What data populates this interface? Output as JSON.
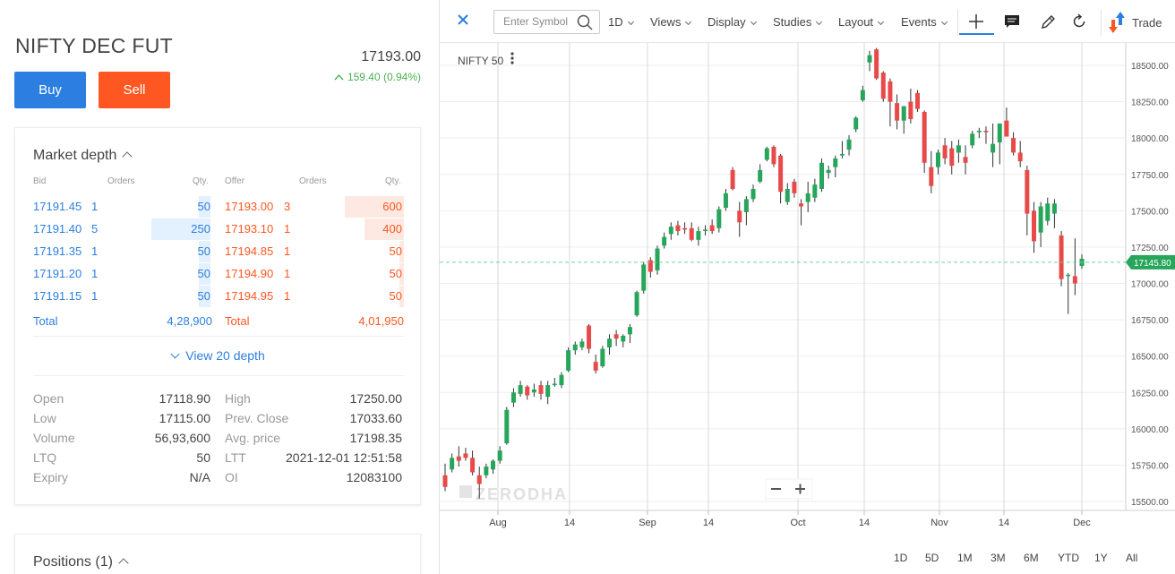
{
  "instrument": {
    "name": "NIFTY DEC FUT",
    "last_price": "17193.00",
    "change": "159.40 (0.94%)",
    "change_color": "#4caf50"
  },
  "actions": {
    "buy_label": "Buy",
    "sell_label": "Sell",
    "buy_color": "#2c7fe0",
    "sell_color": "#fe5722"
  },
  "depth": {
    "title": "Market depth",
    "headers": {
      "bid": "Bid",
      "bid_orders": "Orders",
      "bid_qty": "Qty.",
      "offer": "Offer",
      "offer_orders": "Orders",
      "offer_qty": "Qty."
    },
    "bids": [
      {
        "price": "17191.45",
        "orders": "1",
        "qty": "50",
        "fill": 0.2
      },
      {
        "price": "17191.40",
        "orders": "5",
        "qty": "250",
        "fill": 1.0
      },
      {
        "price": "17191.35",
        "orders": "1",
        "qty": "50",
        "fill": 0.2
      },
      {
        "price": "17191.20",
        "orders": "1",
        "qty": "50",
        "fill": 0.2
      },
      {
        "price": "17191.15",
        "orders": "1",
        "qty": "50",
        "fill": 0.2
      }
    ],
    "offers": [
      {
        "price": "17193.00",
        "orders": "3",
        "qty": "600",
        "fill": 1.0
      },
      {
        "price": "17193.10",
        "orders": "1",
        "qty": "400",
        "fill": 0.67
      },
      {
        "price": "17194.85",
        "orders": "1",
        "qty": "50",
        "fill": 0.08
      },
      {
        "price": "17194.90",
        "orders": "1",
        "qty": "50",
        "fill": 0.08
      },
      {
        "price": "17194.95",
        "orders": "1",
        "qty": "50",
        "fill": 0.08
      }
    ],
    "total_label": "Total",
    "bid_total": "4,28,900",
    "offer_total": "4,01,950",
    "view_more": "View 20 depth"
  },
  "stats": {
    "open_k": "Open",
    "open_v": "17118.90",
    "high_k": "High",
    "high_v": "17250.00",
    "low_k": "Low",
    "low_v": "17115.00",
    "prev_close_k": "Prev. Close",
    "prev_close_v": "17033.60",
    "volume_k": "Volume",
    "volume_v": "56,93,600",
    "avg_price_k": "Avg. price",
    "avg_price_v": "17198.35",
    "ltq_k": "LTQ",
    "ltq_v": "50",
    "ltt_k": "LTT",
    "ltt_v": "2021-12-01 12:51:58",
    "expiry_k": "Expiry",
    "expiry_v": "N/A",
    "oi_k": "OI",
    "oi_v": "12083100"
  },
  "positions": {
    "title": "Positions (1)"
  },
  "toolbar": {
    "search_placeholder": "Enter Symbol",
    "interval": "1D",
    "views": "Views",
    "display": "Display",
    "studies": "Studies",
    "layout": "Layout",
    "events": "Events",
    "trade": "Trade"
  },
  "chart_data": {
    "type": "candlestick",
    "symbol_label": "NIFTY 50",
    "watermark": "ZERODHA",
    "last_price_tag": "17145.80",
    "ylim": [
      15450,
      18600
    ],
    "y_ticks": [
      "18500.00",
      "18250.00",
      "18000.00",
      "17750.00",
      "17500.00",
      "17250.00",
      "17000.00",
      "16750.00",
      "16500.00",
      "16250.00",
      "16000.00",
      "15750.00",
      "15500.00"
    ],
    "x_ticks": [
      "Aug",
      "14",
      "Sep",
      "14",
      "Oct",
      "14",
      "Nov",
      "14",
      "Dec"
    ],
    "up_color": "#26a65b",
    "down_color": "#e84a4a",
    "series": [
      {
        "o": 15680,
        "h": 15760,
        "l": 15570,
        "c": 15600
      },
      {
        "o": 15720,
        "h": 15830,
        "l": 15700,
        "c": 15800
      },
      {
        "o": 15810,
        "h": 15880,
        "l": 15740,
        "c": 15780
      },
      {
        "o": 15830,
        "h": 15870,
        "l": 15780,
        "c": 15800
      },
      {
        "o": 15800,
        "h": 15850,
        "l": 15680,
        "c": 15700
      },
      {
        "o": 15680,
        "h": 15740,
        "l": 15520,
        "c": 15620
      },
      {
        "o": 15680,
        "h": 15760,
        "l": 15660,
        "c": 15740
      },
      {
        "o": 15720,
        "h": 15790,
        "l": 15690,
        "c": 15780
      },
      {
        "o": 15780,
        "h": 15880,
        "l": 15760,
        "c": 15850
      },
      {
        "o": 15900,
        "h": 16150,
        "l": 15890,
        "c": 16130
      },
      {
        "o": 16180,
        "h": 16280,
        "l": 16150,
        "c": 16250
      },
      {
        "o": 16240,
        "h": 16330,
        "l": 16220,
        "c": 16300
      },
      {
        "o": 16290,
        "h": 16300,
        "l": 16200,
        "c": 16230
      },
      {
        "o": 16250,
        "h": 16310,
        "l": 16220,
        "c": 16270
      },
      {
        "o": 16300,
        "h": 16330,
        "l": 16200,
        "c": 16240
      },
      {
        "o": 16220,
        "h": 16330,
        "l": 16170,
        "c": 16300
      },
      {
        "o": 16300,
        "h": 16350,
        "l": 16290,
        "c": 16310
      },
      {
        "o": 16300,
        "h": 16390,
        "l": 16280,
        "c": 16370
      },
      {
        "o": 16400,
        "h": 16560,
        "l": 16390,
        "c": 16540
      },
      {
        "o": 16540,
        "h": 16600,
        "l": 16510,
        "c": 16580
      },
      {
        "o": 16560,
        "h": 16620,
        "l": 16540,
        "c": 16600
      },
      {
        "o": 16710,
        "h": 16720,
        "l": 16520,
        "c": 16550
      },
      {
        "o": 16460,
        "h": 16510,
        "l": 16380,
        "c": 16400
      },
      {
        "o": 16430,
        "h": 16570,
        "l": 16420,
        "c": 16550
      },
      {
        "o": 16560,
        "h": 16650,
        "l": 16510,
        "c": 16620
      },
      {
        "o": 16650,
        "h": 16680,
        "l": 16570,
        "c": 16620
      },
      {
        "o": 16600,
        "h": 16650,
        "l": 16560,
        "c": 16640
      },
      {
        "o": 16650,
        "h": 16720,
        "l": 16590,
        "c": 16700
      },
      {
        "o": 16780,
        "h": 16950,
        "l": 16770,
        "c": 16940
      },
      {
        "o": 16950,
        "h": 17150,
        "l": 16930,
        "c": 17130
      },
      {
        "o": 17160,
        "h": 17180,
        "l": 17040,
        "c": 17080
      },
      {
        "o": 17090,
        "h": 17260,
        "l": 17060,
        "c": 17240
      },
      {
        "o": 17260,
        "h": 17350,
        "l": 17240,
        "c": 17320
      },
      {
        "o": 17340,
        "h": 17420,
        "l": 17300,
        "c": 17390
      },
      {
        "o": 17400,
        "h": 17430,
        "l": 17330,
        "c": 17360
      },
      {
        "o": 17380,
        "h": 17420,
        "l": 17340,
        "c": 17370
      },
      {
        "o": 17380,
        "h": 17420,
        "l": 17290,
        "c": 17300
      },
      {
        "o": 17300,
        "h": 17390,
        "l": 17260,
        "c": 17360
      },
      {
        "o": 17370,
        "h": 17400,
        "l": 17330,
        "c": 17370
      },
      {
        "o": 17400,
        "h": 17440,
        "l": 17340,
        "c": 17360
      },
      {
        "o": 17380,
        "h": 17530,
        "l": 17350,
        "c": 17510
      },
      {
        "o": 17520,
        "h": 17650,
        "l": 17500,
        "c": 17620
      },
      {
        "o": 17780,
        "h": 17800,
        "l": 17640,
        "c": 17650
      },
      {
        "o": 17500,
        "h": 17560,
        "l": 17320,
        "c": 17420
      },
      {
        "o": 17490,
        "h": 17600,
        "l": 17400,
        "c": 17580
      },
      {
        "o": 17580,
        "h": 17680,
        "l": 17560,
        "c": 17650
      },
      {
        "o": 17700,
        "h": 17820,
        "l": 17690,
        "c": 17780
      },
      {
        "o": 17850,
        "h": 17940,
        "l": 17840,
        "c": 17930
      },
      {
        "o": 17940,
        "h": 17950,
        "l": 17800,
        "c": 17820
      },
      {
        "o": 17880,
        "h": 17890,
        "l": 17550,
        "c": 17630
      },
      {
        "o": 17560,
        "h": 17690,
        "l": 17540,
        "c": 17650
      },
      {
        "o": 17700,
        "h": 17720,
        "l": 17590,
        "c": 17620
      },
      {
        "o": 17550,
        "h": 17580,
        "l": 17400,
        "c": 17530
      },
      {
        "o": 17560,
        "h": 17700,
        "l": 17490,
        "c": 17620
      },
      {
        "o": 17590,
        "h": 17720,
        "l": 17560,
        "c": 17680
      },
      {
        "o": 17650,
        "h": 17860,
        "l": 17630,
        "c": 17830
      },
      {
        "o": 17760,
        "h": 17810,
        "l": 17720,
        "c": 17780
      },
      {
        "o": 17800,
        "h": 17880,
        "l": 17730,
        "c": 17860
      },
      {
        "o": 17880,
        "h": 17980,
        "l": 17860,
        "c": 17890
      },
      {
        "o": 17920,
        "h": 18020,
        "l": 17880,
        "c": 17990
      },
      {
        "o": 18060,
        "h": 18150,
        "l": 18040,
        "c": 18140
      },
      {
        "o": 18260,
        "h": 18360,
        "l": 18250,
        "c": 18330
      },
      {
        "o": 18520,
        "h": 18600,
        "l": 18460,
        "c": 18570
      },
      {
        "o": 18610,
        "h": 18620,
        "l": 18400,
        "c": 18410
      },
      {
        "o": 18450,
        "h": 18460,
        "l": 18250,
        "c": 18270
      },
      {
        "o": 18390,
        "h": 18410,
        "l": 18080,
        "c": 18250
      },
      {
        "o": 18240,
        "h": 18300,
        "l": 18060,
        "c": 18120
      },
      {
        "o": 18120,
        "h": 18200,
        "l": 18030,
        "c": 18220
      },
      {
        "o": 18250,
        "h": 18340,
        "l": 18100,
        "c": 18130
      },
      {
        "o": 18310,
        "h": 18330,
        "l": 18180,
        "c": 18200
      },
      {
        "o": 18180,
        "h": 18190,
        "l": 17760,
        "c": 17830
      },
      {
        "o": 17800,
        "h": 17910,
        "l": 17620,
        "c": 17670
      },
      {
        "o": 17800,
        "h": 17920,
        "l": 17750,
        "c": 17900
      },
      {
        "o": 17950,
        "h": 18000,
        "l": 17820,
        "c": 17860
      },
      {
        "o": 17930,
        "h": 17980,
        "l": 17750,
        "c": 17810
      },
      {
        "o": 17900,
        "h": 17990,
        "l": 17830,
        "c": 17950
      },
      {
        "o": 17870,
        "h": 17950,
        "l": 17750,
        "c": 17830
      },
      {
        "o": 17950,
        "h": 18050,
        "l": 17930,
        "c": 18030
      },
      {
        "o": 18040,
        "h": 18070,
        "l": 18000,
        "c": 18050
      },
      {
        "o": 18050,
        "h": 18080,
        "l": 17960,
        "c": 18040
      },
      {
        "o": 17900,
        "h": 18100,
        "l": 17800,
        "c": 17960
      },
      {
        "o": 17970,
        "h": 18100,
        "l": 17820,
        "c": 18100
      },
      {
        "o": 18120,
        "h": 18210,
        "l": 18020,
        "c": 18010
      },
      {
        "o": 18000,
        "h": 18040,
        "l": 17880,
        "c": 17900
      },
      {
        "o": 17900,
        "h": 17980,
        "l": 17800,
        "c": 17840
      },
      {
        "o": 17780,
        "h": 17810,
        "l": 17330,
        "c": 17480
      },
      {
        "o": 17500,
        "h": 17560,
        "l": 17210,
        "c": 17290
      },
      {
        "o": 17350,
        "h": 17560,
        "l": 17250,
        "c": 17530
      },
      {
        "o": 17430,
        "h": 17590,
        "l": 17400,
        "c": 17550
      },
      {
        "o": 17480,
        "h": 17580,
        "l": 17380,
        "c": 17550
      },
      {
        "o": 17330,
        "h": 17360,
        "l": 16980,
        "c": 17030
      },
      {
        "o": 17050,
        "h": 17070,
        "l": 16790,
        "c": 17060
      },
      {
        "o": 17050,
        "h": 17310,
        "l": 16920,
        "c": 17000
      },
      {
        "o": 17120,
        "h": 17200,
        "l": 17100,
        "c": 17170
      }
    ]
  },
  "periods": [
    "1D",
    "5D",
    "1M",
    "3M",
    "6M",
    "YTD",
    "1Y",
    "All"
  ]
}
